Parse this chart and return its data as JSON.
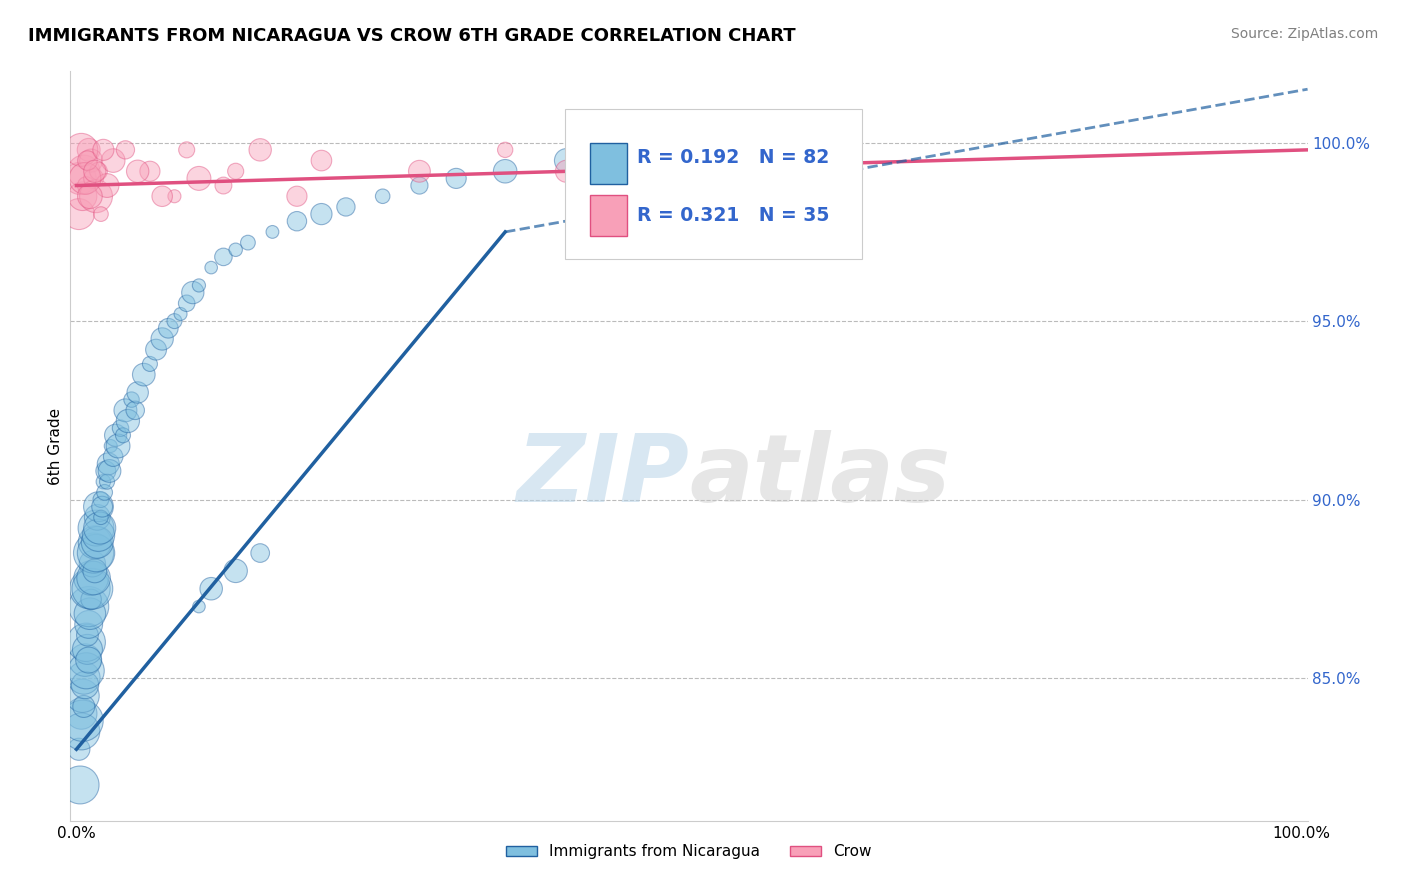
{
  "title": "IMMIGRANTS FROM NICARAGUA VS CROW 6TH GRADE CORRELATION CHART",
  "source": "Source: ZipAtlas.com",
  "ylabel": "6th Grade",
  "ytick_labels": [
    "100.0%",
    "95.0%",
    "90.0%",
    "85.0%"
  ],
  "ytick_values": [
    1.0,
    0.95,
    0.9,
    0.85
  ],
  "ylim": [
    0.81,
    1.02
  ],
  "xlim": [
    -0.005,
    1.005
  ],
  "legend_r1": "R = 0.192",
  "legend_n1": "N = 82",
  "legend_r2": "R = 0.321",
  "legend_n2": "N = 35",
  "blue_color": "#7fbfdf",
  "blue_line_color": "#2060a0",
  "pink_color": "#f8a0b8",
  "pink_line_color": "#e05080",
  "blue_x": [
    0.002,
    0.003,
    0.004,
    0.004,
    0.005,
    0.005,
    0.006,
    0.006,
    0.007,
    0.007,
    0.008,
    0.008,
    0.009,
    0.009,
    0.01,
    0.01,
    0.01,
    0.011,
    0.011,
    0.012,
    0.012,
    0.013,
    0.013,
    0.014,
    0.014,
    0.015,
    0.015,
    0.016,
    0.016,
    0.017,
    0.017,
    0.018,
    0.018,
    0.019,
    0.02,
    0.02,
    0.021,
    0.022,
    0.023,
    0.024,
    0.025,
    0.026,
    0.027,
    0.028,
    0.03,
    0.032,
    0.034,
    0.036,
    0.038,
    0.04,
    0.042,
    0.045,
    0.048,
    0.05,
    0.055,
    0.06,
    0.065,
    0.07,
    0.075,
    0.08,
    0.085,
    0.09,
    0.095,
    0.1,
    0.11,
    0.12,
    0.13,
    0.14,
    0.16,
    0.18,
    0.2,
    0.22,
    0.25,
    0.28,
    0.31,
    0.35,
    0.4,
    0.45,
    0.1,
    0.11,
    0.13,
    0.15
  ],
  "blue_y": [
    0.83,
    0.82,
    0.84,
    0.835,
    0.838,
    0.845,
    0.85,
    0.842,
    0.848,
    0.855,
    0.852,
    0.86,
    0.858,
    0.862,
    0.865,
    0.87,
    0.855,
    0.868,
    0.875,
    0.872,
    0.878,
    0.875,
    0.882,
    0.878,
    0.885,
    0.88,
    0.888,
    0.885,
    0.892,
    0.888,
    0.895,
    0.89,
    0.898,
    0.892,
    0.895,
    0.9,
    0.898,
    0.905,
    0.902,
    0.908,
    0.905,
    0.91,
    0.908,
    0.915,
    0.912,
    0.918,
    0.915,
    0.92,
    0.918,
    0.925,
    0.922,
    0.928,
    0.925,
    0.93,
    0.935,
    0.938,
    0.942,
    0.945,
    0.948,
    0.95,
    0.952,
    0.955,
    0.958,
    0.96,
    0.965,
    0.968,
    0.97,
    0.972,
    0.975,
    0.978,
    0.98,
    0.982,
    0.985,
    0.988,
    0.99,
    0.992,
    0.995,
    0.998,
    0.87,
    0.875,
    0.88,
    0.885
  ],
  "pink_x": [
    0.002,
    0.003,
    0.005,
    0.006,
    0.008,
    0.01,
    0.012,
    0.014,
    0.016,
    0.018,
    0.02,
    0.025,
    0.03,
    0.04,
    0.06,
    0.08,
    0.1,
    0.15,
    0.2,
    0.28,
    0.35,
    0.12,
    0.13,
    0.18,
    0.004,
    0.007,
    0.009,
    0.011,
    0.015,
    0.022,
    0.05,
    0.07,
    0.09,
    0.4,
    0.5
  ],
  "pink_y": [
    0.98,
    0.99,
    0.985,
    0.992,
    0.988,
    0.998,
    0.995,
    0.99,
    0.985,
    0.992,
    0.98,
    0.988,
    0.995,
    0.998,
    0.992,
    0.985,
    0.99,
    0.998,
    0.995,
    0.992,
    0.998,
    0.988,
    0.992,
    0.985,
    0.998,
    0.99,
    0.995,
    0.985,
    0.992,
    0.998,
    0.992,
    0.985,
    0.998,
    0.992,
    0.998
  ],
  "blue_trendline_x": [
    0.0,
    0.45,
    1.005
  ],
  "blue_trendline_y_start": 0.83,
  "blue_trendline_y_mid": 0.975,
  "blue_trendline_y_end": 1.015,
  "pink_trendline_y_start": 0.988,
  "pink_trendline_y_end": 0.998
}
